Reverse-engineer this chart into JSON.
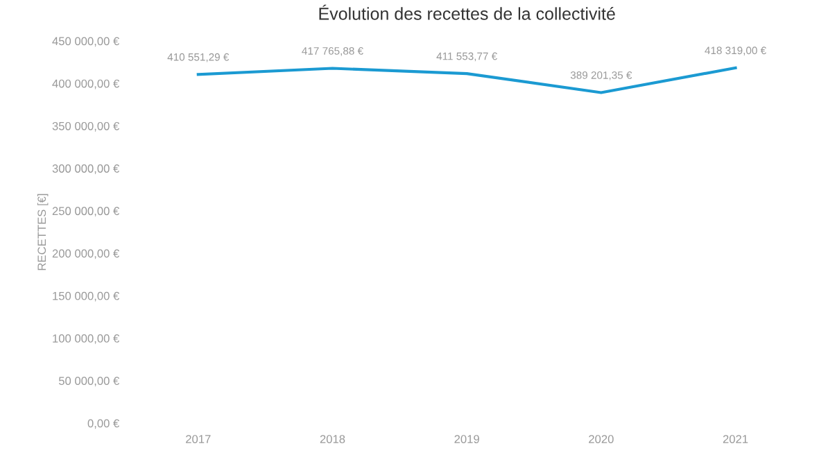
{
  "chart_data": {
    "type": "line",
    "title": "Évolution des recettes de la collectivité",
    "ylabel": "RECETTES [€]",
    "categories": [
      "2017",
      "2018",
      "2019",
      "2020",
      "2021"
    ],
    "series": [
      {
        "color": "#1b9ad2",
        "values": [
          410551.29,
          417765.88,
          411553.77,
          389201.35,
          418319.0
        ],
        "value_labels": [
          "410 551,29 €",
          "417 765,88 €",
          "411 553,77 €",
          "389 201,35 €",
          "418 319,00 €"
        ]
      }
    ],
    "ylim": [
      0,
      450000
    ],
    "yticks": [
      {
        "value": 0,
        "label": "0,00 €"
      },
      {
        "value": 50000,
        "label": "50 000,00 €"
      },
      {
        "value": 100000,
        "label": "100 000,00 €"
      },
      {
        "value": 150000,
        "label": "150 000,00 €"
      },
      {
        "value": 200000,
        "label": "200 000,00 €"
      },
      {
        "value": 250000,
        "label": "250 000,00 €"
      },
      {
        "value": 300000,
        "label": "300 000,00 €"
      },
      {
        "value": 350000,
        "label": "350 000,00 €"
      },
      {
        "value": 400000,
        "label": "400 000,00 €"
      },
      {
        "value": 450000,
        "label": "450 000,00 €"
      }
    ],
    "grid": false,
    "legend": false,
    "marker": "none",
    "line_style": "solid"
  }
}
